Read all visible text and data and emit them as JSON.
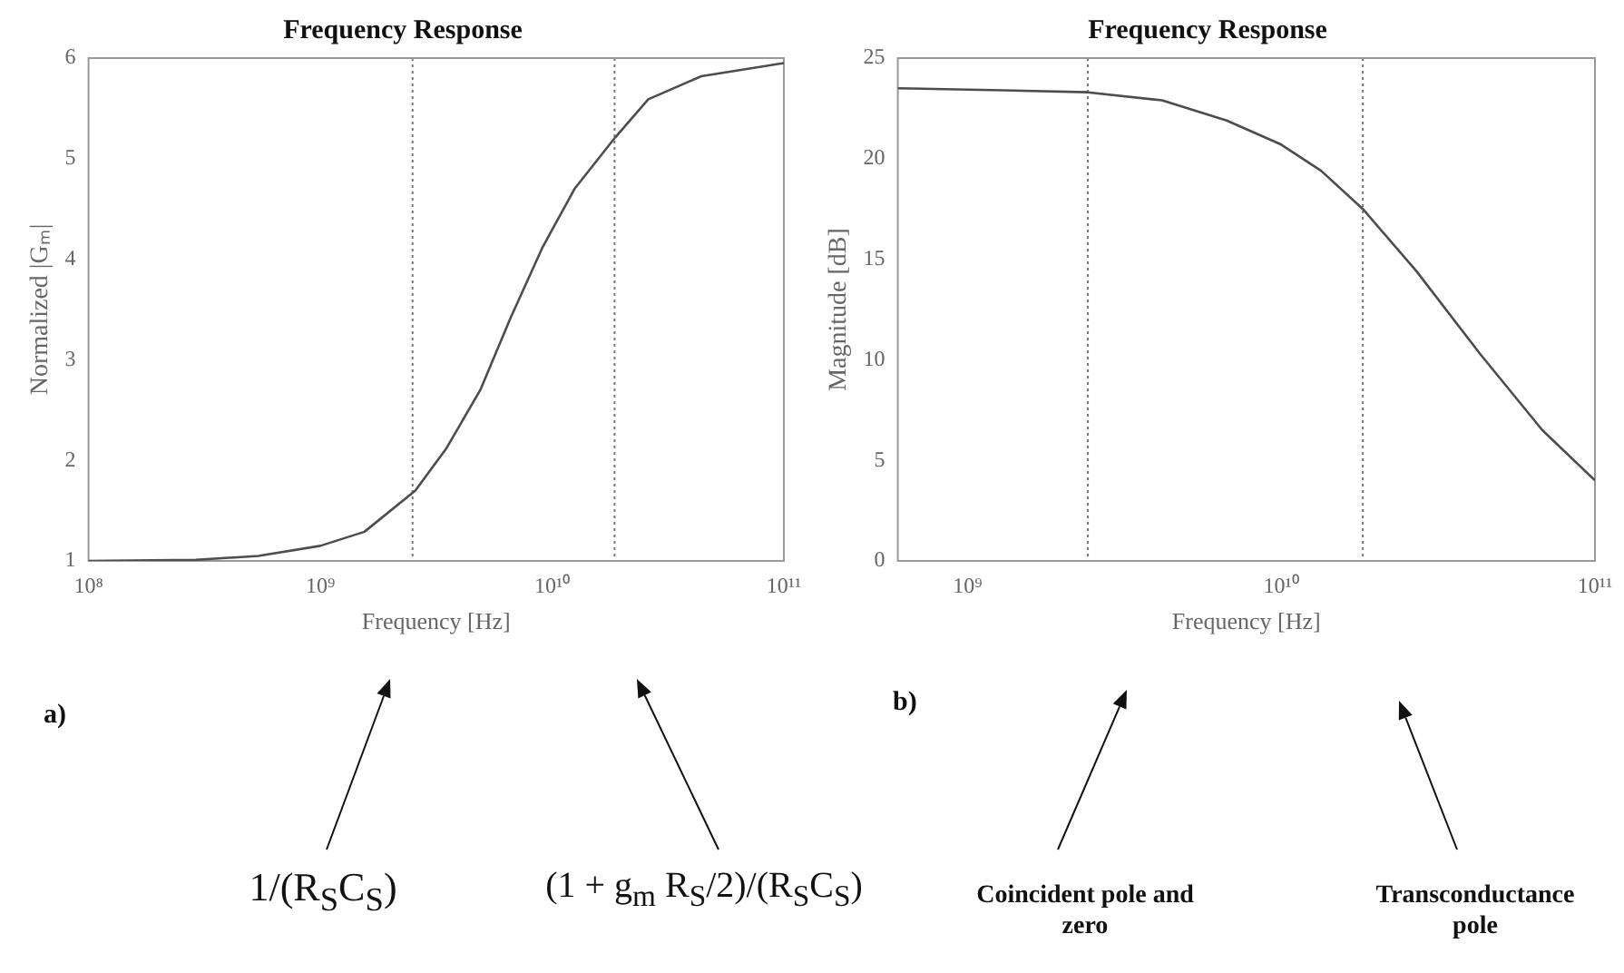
{
  "chart_data": [
    {
      "type": "line",
      "title": "Frequency Response",
      "xlabel": "Frequency [Hz]",
      "ylabel": "Normalized |Gₘ|",
      "log": "x",
      "grid": false,
      "legend": false,
      "marker": "none",
      "line_style": "solid",
      "x": [
        100000000.0,
        290000000.0,
        540000000.0,
        1000000000.0,
        1550000000.0,
        2570000000.0,
        3500000000.0,
        4900000000.0,
        6600000000.0,
        9100000000.0,
        12500000000.0,
        18700000000.0,
        26000000000.0,
        44000000000.0,
        100000000000.0
      ],
      "series": [
        {
          "color": "#4d4d4d",
          "values": [
            1.0,
            1.01,
            1.05,
            1.15,
            1.29,
            1.7,
            2.12,
            2.7,
            3.41,
            4.12,
            4.7,
            5.21,
            5.59,
            5.82,
            5.95
          ]
        }
      ],
      "xlim": [
        100000000.0,
        100000000000.0
      ],
      "xticks": [
        {
          "value": 100000000.0,
          "label": "10⁸"
        },
        {
          "value": 1000000000.0,
          "label": "10⁹"
        },
        {
          "value": 10000000000.0,
          "label": "10¹⁰"
        },
        {
          "value": 100000000000.0,
          "label": "10¹¹"
        }
      ],
      "ylim": [
        1,
        6
      ],
      "yticks": [
        1,
        2,
        3,
        4,
        5,
        6
      ],
      "ref_lines": [
        {
          "axis": "x",
          "value": 2500000000.0,
          "color": "#777777",
          "line_style": "dotted"
        },
        {
          "axis": "x",
          "value": 18600000000.0,
          "color": "#777777",
          "line_style": "dotted"
        }
      ],
      "annotations": [
        "a)",
        "1/(R$_{S}$C$_{S}$)",
        "(1 + g$_{m}$ R$_{S}$/2)/(R$_{S}$C$_{S}$)"
      ]
    },
    {
      "type": "line",
      "title": "Frequency Response",
      "xlabel": "Frequency [Hz]",
      "ylabel": "Magnitude [dB]",
      "log": "x",
      "grid": false,
      "legend": false,
      "marker": "none",
      "line_style": "solid",
      "x": [
        600000000.0,
        1300000000.0,
        2420000000.0,
        4170000000.0,
        6700000000.0,
        10000000000.0,
        13400000000.0,
        18200000000.0,
        27000000000.0,
        43000000000.0,
        68000000000.0,
        100000000000.0
      ],
      "series": [
        {
          "color": "#4d4d4d",
          "values": [
            23.5,
            23.4,
            23.3,
            22.9,
            21.9,
            20.7,
            19.4,
            17.5,
            14.4,
            10.3,
            6.5,
            4.0
          ]
        }
      ],
      "xlim": [
        600000000.0,
        100000000000.0
      ],
      "xticks": [
        {
          "value": 1000000000.0,
          "label": "10⁹"
        },
        {
          "value": 10000000000.0,
          "label": "10¹⁰"
        },
        {
          "value": 100000000000.0,
          "label": "10¹¹"
        }
      ],
      "ylim": [
        0,
        25
      ],
      "yticks": [
        0,
        5,
        10,
        15,
        20,
        25
      ],
      "ref_lines": [
        {
          "axis": "x",
          "value": 2420000000.0,
          "color": "#777777",
          "line_style": "dotted"
        },
        {
          "axis": "x",
          "value": 18200000000.0,
          "color": "#777777",
          "line_style": "dotted"
        }
      ],
      "annotations": [
        "b)",
        "Coincident pole and zero",
        "Transconductance pole"
      ]
    }
  ]
}
